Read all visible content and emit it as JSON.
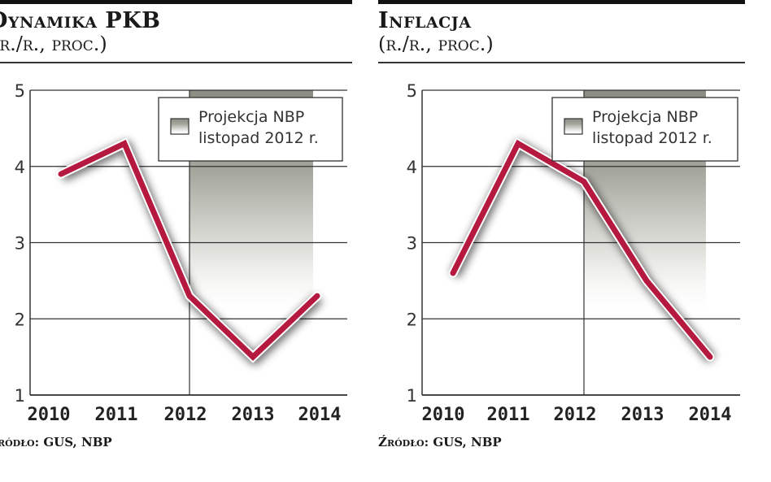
{
  "chart_data": [
    {
      "type": "line",
      "title": "Dynamika PKB",
      "subtitle": "(r./r., proc.)",
      "categories": [
        "2010",
        "2011",
        "2012",
        "2013",
        "2014"
      ],
      "values": [
        3.9,
        4.3,
        2.3,
        1.5,
        2.3
      ],
      "ylim": [
        1,
        5
      ],
      "yticks": [
        "1",
        "2",
        "3",
        "4",
        "5"
      ],
      "grid": true,
      "shaded_region": {
        "from": "2012",
        "to": "2014",
        "label": "Projekcja NBP listopad 2012 r."
      },
      "legend": {
        "position": "top-right",
        "lines": [
          "Projekcja NBP",
          "listopad 2012 r."
        ]
      },
      "source": "Źródło: GUS, NBP",
      "line_color": "#b5193f"
    },
    {
      "type": "line",
      "title": "Inflacja",
      "subtitle": "(r./r., proc.)",
      "categories": [
        "2010",
        "2011",
        "2012",
        "2013",
        "2014"
      ],
      "values": [
        2.6,
        4.3,
        3.8,
        2.5,
        1.5
      ],
      "ylim": [
        1,
        5
      ],
      "yticks": [
        "1",
        "2",
        "3",
        "4",
        "5"
      ],
      "grid": true,
      "shaded_region": {
        "from": "2012",
        "to": "2014",
        "label": "Projekcja NBP listopad 2012 r."
      },
      "legend": {
        "position": "top-right",
        "lines": [
          "Projekcja NBP",
          "listopad 2012 r."
        ]
      },
      "source": "Źródło: GUS, NBP",
      "line_color": "#b5193f"
    }
  ]
}
